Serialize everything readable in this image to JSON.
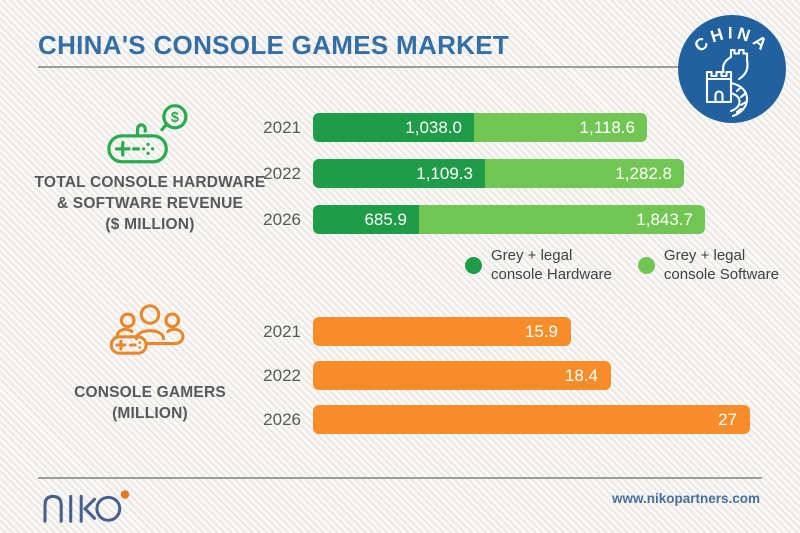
{
  "header": {
    "title": "CHINA'S CONSOLE GAMES MARKET"
  },
  "badge": {
    "text": "CHINA"
  },
  "sections": {
    "revenue": {
      "label_lines": [
        "TOTAL CONSOLE HARDWARE",
        "& SOFTWARE REVENUE",
        "($ MILLION)"
      ]
    },
    "gamers": {
      "label_lines": [
        "CONSOLE GAMERS",
        "(MILLION)"
      ]
    }
  },
  "chart_data": [
    {
      "type": "bar",
      "orientation": "horizontal",
      "stacked": true,
      "title": "TOTAL CONSOLE HARDWARE & SOFTWARE REVENUE ($ MILLION)",
      "categories": [
        "2021",
        "2022",
        "2026"
      ],
      "series": [
        {
          "name": "Grey + legal console Hardware",
          "color": "#1E9C47",
          "values": [
            1038.0,
            1109.3,
            685.9
          ],
          "labels": [
            "1,038.0",
            "1,109.3",
            "685.9"
          ]
        },
        {
          "name": "Grey + legal console Software",
          "color": "#71C653",
          "values": [
            1118.6,
            1282.8,
            1843.7
          ],
          "labels": [
            "1,118.6",
            "1,282.8",
            "1,843.7"
          ]
        }
      ],
      "legend": [
        {
          "line1": "Grey + legal",
          "line2": "console Hardware"
        },
        {
          "line1": "Grey + legal",
          "line2": "console Software"
        }
      ],
      "legend_position": "bottom-right",
      "value_labels": "inside-right"
    },
    {
      "type": "bar",
      "orientation": "horizontal",
      "stacked": false,
      "title": "CONSOLE GAMERS (MILLION)",
      "categories": [
        "2021",
        "2022",
        "2026"
      ],
      "values": [
        15.9,
        18.4,
        27
      ],
      "labels": [
        "15.9",
        "18.4",
        "27"
      ],
      "color": "#F78D28"
    }
  ],
  "footer": {
    "logo_text": "niko",
    "website": "www.nikopartners.com"
  },
  "colors": {
    "hardware_green": "#1E9C47",
    "software_green": "#71C653",
    "gamers_orange": "#F78D28",
    "icon_green": "#2BAB4F",
    "icon_orange": "#E8872B",
    "title_blue": "#336FA4",
    "badge_blue": "#2161A0",
    "niko_blue": "#47618E",
    "accent_orange_dot": "#E87722"
  }
}
